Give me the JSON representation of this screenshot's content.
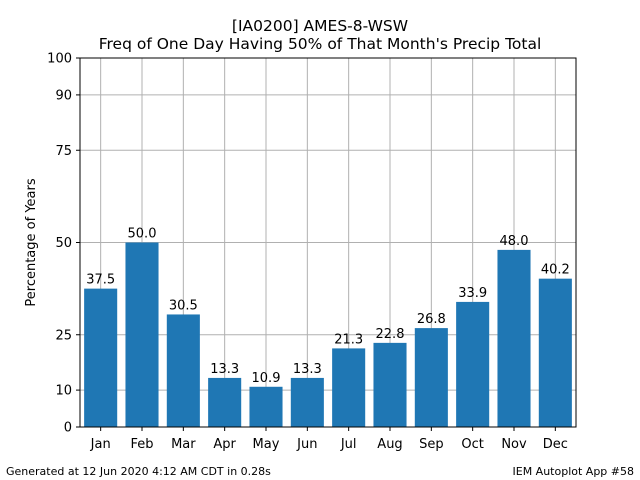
{
  "chart_data": {
    "type": "bar",
    "title": "[IA0200] AMES-8-WSW",
    "subtitle": "Freq of One Day Having 50% of That Month's Precip Total",
    "xlabel": "",
    "ylabel": "Percentage of Years",
    "categories": [
      "Jan",
      "Feb",
      "Mar",
      "Apr",
      "May",
      "Jun",
      "Jul",
      "Aug",
      "Sep",
      "Oct",
      "Nov",
      "Dec"
    ],
    "values": [
      37.5,
      50.0,
      30.5,
      13.3,
      10.9,
      13.3,
      21.3,
      22.8,
      26.8,
      33.9,
      48.0,
      40.2
    ],
    "data_labels": [
      "37.5",
      "50.0",
      "30.5",
      "13.3",
      "10.9",
      "13.3",
      "21.3",
      "22.8",
      "26.8",
      "33.9",
      "48.0",
      "40.2"
    ],
    "yticks": [
      0,
      10,
      25,
      50,
      75,
      90,
      100
    ],
    "ylim": [
      0,
      100
    ],
    "grid": true,
    "legend": "none",
    "bar_color": "#1f77b4",
    "grid_color": "#b0b0b0"
  },
  "footer": {
    "left": "Generated at 12 Jun 2020 4:12 AM CDT in 0.28s",
    "right": "IEM Autoplot App #58"
  }
}
